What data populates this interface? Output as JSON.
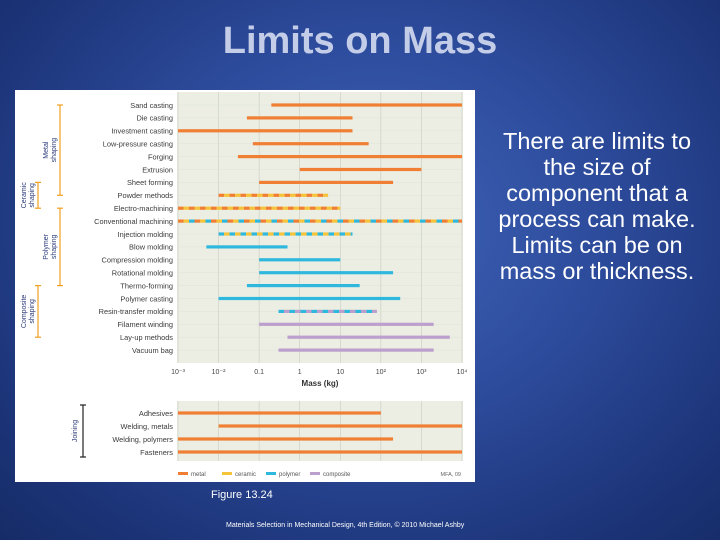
{
  "slide": {
    "title": "Limits on Mass",
    "body_text": "There are limits to the size of component that a process can make. Limits can be on mass or thickness.",
    "caption": "Figure 13.24",
    "footer": "Materials Selection in Mechanical Design, 4th Edition, © 2010 Michael Ashby"
  },
  "chart_data": [
    {
      "type": "bar",
      "subtype": "range",
      "xlabel": "Mass (kg)",
      "xscale": "log",
      "xlim": [
        0.001,
        10000
      ],
      "xticks": [
        "10⁻³",
        "10⁻²",
        "0.1",
        "1",
        "10",
        "10²",
        "10³",
        "10⁴"
      ],
      "grid": true,
      "groups": [
        {
          "name": "Metal shaping",
          "first": 0,
          "last": 7
        },
        {
          "name": "Ceramic shaping",
          "first": 6,
          "last": 8
        },
        {
          "name": "Polymer shaping",
          "first": 8,
          "last": 14
        },
        {
          "name": "Composite shaping",
          "first": 14,
          "last": 18
        }
      ],
      "processes": [
        {
          "name": "Sand casting",
          "min": 0.2,
          "max": 10000,
          "materials": [
            "metal"
          ]
        },
        {
          "name": "Die casting",
          "min": 0.05,
          "max": 20,
          "materials": [
            "metal"
          ]
        },
        {
          "name": "Investment casting",
          "min": 0.001,
          "max": 20,
          "materials": [
            "metal"
          ]
        },
        {
          "name": "Low-pressure casting",
          "min": 0.07,
          "max": 50,
          "materials": [
            "metal"
          ]
        },
        {
          "name": "Forging",
          "min": 0.03,
          "max": 10000,
          "materials": [
            "metal"
          ]
        },
        {
          "name": "Extrusion",
          "min": 1,
          "max": 1000,
          "materials": [
            "metal"
          ]
        },
        {
          "name": "Sheet forming",
          "min": 0.1,
          "max": 200,
          "materials": [
            "metal"
          ]
        },
        {
          "name": "Powder methods",
          "min": 0.01,
          "max": 5,
          "materials": [
            "metal",
            "ceramic"
          ]
        },
        {
          "name": "Electro-machining",
          "min": 0.001,
          "max": 10,
          "materials": [
            "metal",
            "ceramic"
          ]
        },
        {
          "name": "Conventional machining",
          "min": 0.001,
          "max": 10000,
          "materials": [
            "metal",
            "ceramic",
            "polymer"
          ]
        },
        {
          "name": "Injection molding",
          "min": 0.01,
          "max": 20,
          "materials": [
            "polymer",
            "ceramic"
          ]
        },
        {
          "name": "Blow molding",
          "min": 0.005,
          "max": 0.5,
          "materials": [
            "polymer"
          ]
        },
        {
          "name": "Compression molding",
          "min": 0.1,
          "max": 10,
          "materials": [
            "polymer"
          ]
        },
        {
          "name": "Rotational molding",
          "min": 0.1,
          "max": 200,
          "materials": [
            "polymer"
          ]
        },
        {
          "name": "Thermo-forming",
          "min": 0.05,
          "max": 30,
          "materials": [
            "polymer"
          ]
        },
        {
          "name": "Polymer casting",
          "min": 0.01,
          "max": 300,
          "materials": [
            "polymer"
          ]
        },
        {
          "name": "Resin-transfer molding",
          "min": 0.3,
          "max": 80,
          "materials": [
            "polymer",
            "composite"
          ]
        },
        {
          "name": "Filament winding",
          "min": 0.1,
          "max": 2000,
          "materials": [
            "composite"
          ]
        },
        {
          "name": "Lay-up methods",
          "min": 0.5,
          "max": 5000,
          "materials": [
            "composite"
          ]
        },
        {
          "name": "Vacuum bag",
          "min": 0.3,
          "max": 2000,
          "materials": [
            "composite"
          ]
        }
      ]
    },
    {
      "type": "bar",
      "subtype": "range",
      "xscale": "log",
      "xlim": [
        0.001,
        10000
      ],
      "group": "Joining",
      "processes": [
        {
          "name": "Adhesives",
          "min": 0.001,
          "max": 100,
          "materials": [
            "metal"
          ]
        },
        {
          "name": "Welding, metals",
          "min": 0.01,
          "max": 10000,
          "materials": [
            "metal"
          ]
        },
        {
          "name": "Welding, polymers",
          "min": 0.001,
          "max": 200,
          "materials": [
            "metal"
          ]
        },
        {
          "name": "Fasteners",
          "min": 0.001,
          "max": 10000,
          "materials": [
            "metal"
          ]
        }
      ],
      "legend": [
        {
          "label": "metal",
          "color": "#f07f33"
        },
        {
          "label": "ceramic",
          "color": "#f5c43a"
        },
        {
          "label": "polymer",
          "color": "#2fb8dd"
        },
        {
          "label": "composite",
          "color": "#bb9fcc"
        }
      ],
      "credit": "MFA, 09"
    }
  ],
  "colors": {
    "metal": "#f07f33",
    "ceramic": "#f5c43a",
    "polymer": "#2fb8dd",
    "composite": "#bb9fcc",
    "bracket": "#f0a020",
    "panel": "#eceee4",
    "title": "#c4cde8"
  }
}
